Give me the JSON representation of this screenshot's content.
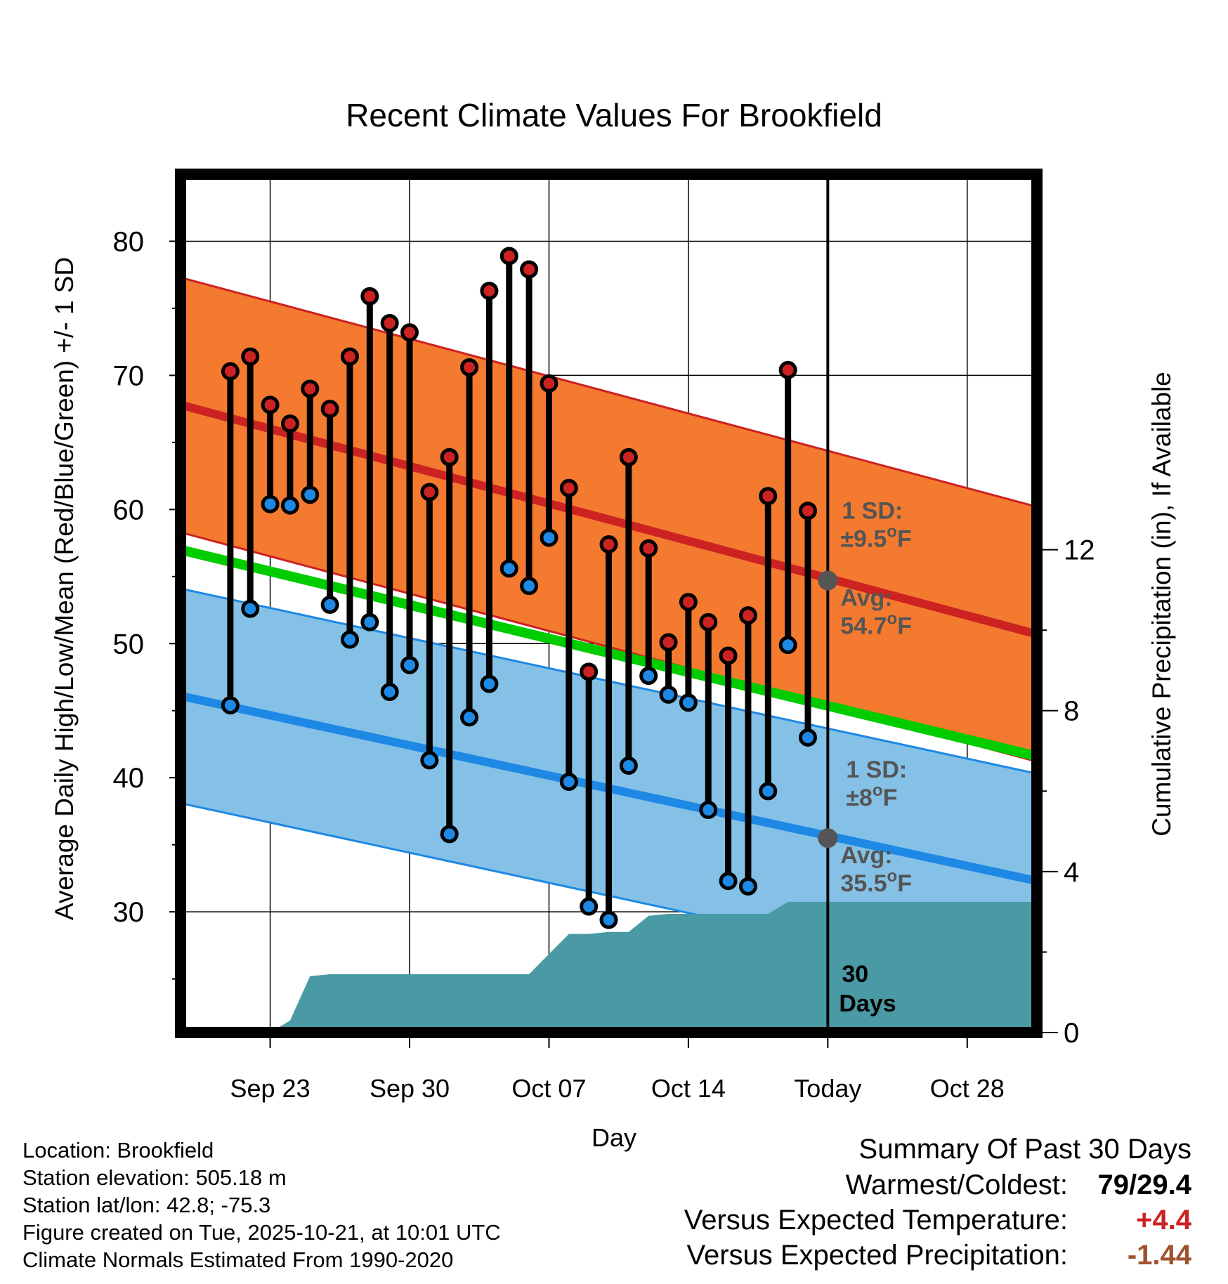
{
  "chart_data": {
    "type": "line",
    "title": "Recent Climate Values For Brookfield",
    "xlabel": "Day",
    "ylabel": "Average Daily High/Low/Mean (Red/Blue/Green) +/- 1 SD",
    "y2label": "Cumulative Precipitation (in), If Available",
    "x_range_days": [
      -32.5,
      10.5
    ],
    "ylim": [
      21,
      85
    ],
    "y2lim": [
      0,
      21.333
    ],
    "yticks": [
      30,
      40,
      50,
      60,
      70,
      80
    ],
    "y2ticks": [
      0,
      4,
      8,
      12
    ],
    "xticks": [
      {
        "day": -28,
        "label": "Sep 23"
      },
      {
        "day": -21,
        "label": "Sep 30"
      },
      {
        "day": -14,
        "label": "Oct 07"
      },
      {
        "day": -7,
        "label": "Oct 14"
      },
      {
        "day": 0,
        "label": "Today"
      },
      {
        "day": 7,
        "label": "Oct 28"
      }
    ],
    "today_marker": {
      "day": 0,
      "label_line1": "30",
      "label_line2": "Days"
    },
    "normals": {
      "high_avg_start": 67.8,
      "high_avg_end": 50.7,
      "high_sd": 9.5,
      "low_avg_start": 46.1,
      "low_avg_end": 32.3,
      "low_sd": 8,
      "mean_start": 57.0,
      "mean_end": 41.6,
      "high_avg_today": 54.7,
      "low_avg_today": 35.5,
      "high_label_sd": "1 SD:",
      "high_label_sd_value": "±9.5°F",
      "high_label_avg": "Avg:",
      "high_label_avg_value": "54.7°F",
      "low_label_sd": "1 SD:",
      "low_label_sd_value": "±8°F",
      "low_label_avg": "Avg:",
      "low_label_avg_value": "35.5°F"
    },
    "series": [
      {
        "name": "Daily High",
        "color": "#cc2222",
        "days": [
          -30,
          -29,
          -28,
          -27,
          -26,
          -25,
          -24,
          -23,
          -22,
          -21,
          -20,
          -19,
          -18,
          -17,
          -16,
          -15,
          -14,
          -13,
          -12,
          -11,
          -10,
          -9,
          -8,
          -7,
          -6,
          -5,
          -4,
          -3,
          -2,
          -1
        ],
        "values": [
          70.3,
          71.4,
          67.8,
          66.4,
          69.0,
          67.5,
          71.4,
          75.9,
          73.9,
          73.2,
          61.3,
          63.9,
          70.6,
          76.3,
          78.9,
          77.9,
          69.4,
          61.6,
          47.9,
          57.4,
          63.9,
          57.1,
          50.1,
          53.1,
          51.6,
          49.1,
          52.1,
          61.0,
          70.4,
          59.9
        ]
      },
      {
        "name": "Daily Low",
        "color": "#1e88e5",
        "days": [
          -30,
          -29,
          -28,
          -27,
          -26,
          -25,
          -24,
          -23,
          -22,
          -21,
          -20,
          -19,
          -18,
          -17,
          -16,
          -15,
          -14,
          -13,
          -12,
          -11,
          -10,
          -9,
          -8,
          -7,
          -6,
          -5,
          -4,
          -3,
          -2,
          -1
        ],
        "values": [
          45.4,
          52.6,
          60.4,
          60.3,
          61.1,
          52.9,
          50.3,
          51.6,
          46.4,
          48.4,
          41.3,
          35.8,
          44.5,
          47.0,
          55.6,
          54.3,
          57.9,
          39.7,
          30.4,
          29.4,
          40.9,
          47.6,
          46.2,
          45.6,
          37.6,
          32.3,
          31.9,
          39.0,
          49.9,
          43.0
        ]
      },
      {
        "name": "Cumulative Precipitation",
        "color": "#4a9aa5",
        "days": [
          -32.5,
          -28,
          -27,
          -26,
          -25,
          -24,
          -20,
          -15,
          -14,
          -13,
          -12,
          -11,
          -10,
          -9,
          -8,
          -7,
          -6,
          -4,
          -3,
          -2,
          -1,
          10.5
        ],
        "values": [
          0,
          0,
          0.3,
          1.4,
          1.45,
          1.45,
          1.45,
          1.45,
          1.95,
          2.45,
          2.45,
          2.5,
          2.5,
          2.9,
          2.95,
          2.95,
          2.95,
          2.95,
          2.95,
          3.25,
          3.25,
          3.25
        ]
      }
    ]
  },
  "meta": {
    "location": "Location: Brookfield",
    "elevation": "Station elevation: 505.18 m",
    "latlon": "Station lat/lon: 42.8; -75.3",
    "created": "Figure created on Tue, 2025-10-21, at 10:01 UTC",
    "normals_note": "Climate Normals Estimated From 1990-2020"
  },
  "summary": {
    "title": "Summary Of Past 30 Days",
    "warm_cold_label": "Warmest/Coldest:",
    "warm_cold_value": "79/29.4",
    "temp_label": "Versus Expected Temperature:",
    "temp_value": "+4.4",
    "temp_color": "#cc2222",
    "precip_label": "Versus Expected Precipitation:",
    "precip_value": "-1.44",
    "precip_color": "#a0522d"
  },
  "colors": {
    "high_band": "#f47a30",
    "low_band": "#85c1e6",
    "mean_line": "#00cc00",
    "high_line": "#cc2222",
    "low_line": "#1e88e5",
    "precip": "#4a9aa5",
    "annotation": "#555555"
  }
}
